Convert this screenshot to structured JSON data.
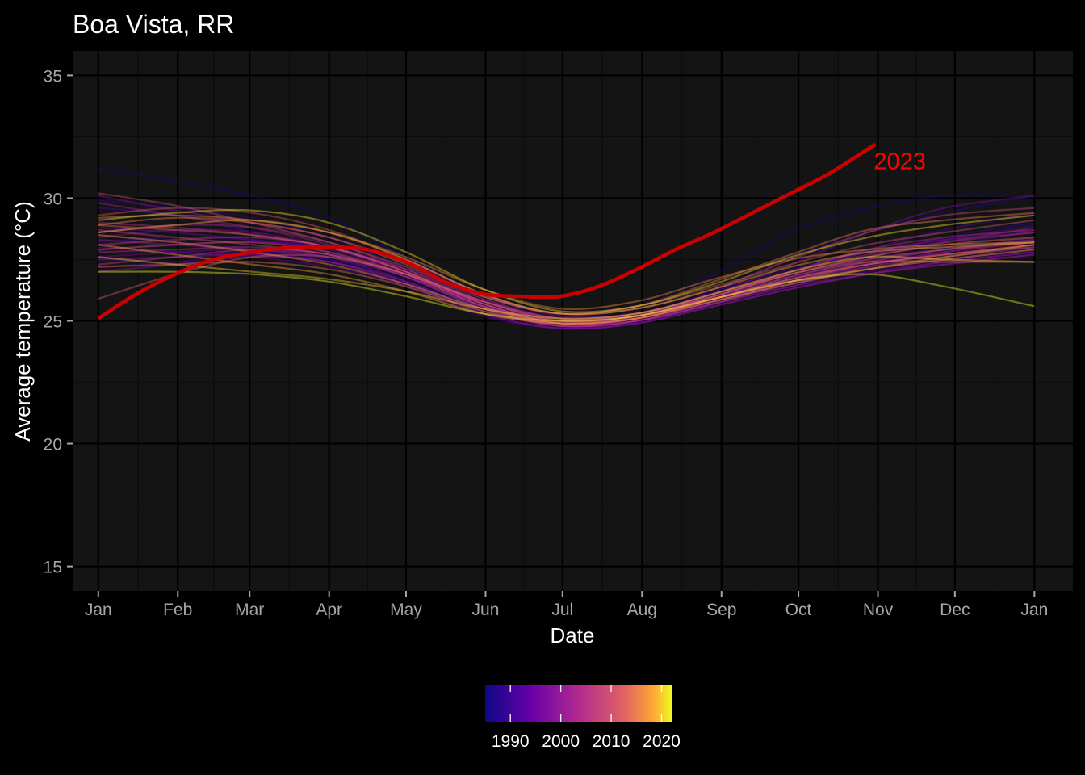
{
  "chart_data": {
    "type": "line",
    "title": "Boa Vista, RR",
    "xlabel": "Date",
    "ylabel": "Average temperature (°C)",
    "ylim": [
      14,
      36
    ],
    "yticks": [
      15,
      20,
      25,
      30,
      35
    ],
    "xlim": [
      -10,
      380
    ],
    "x_unit": "day of year",
    "xtick_days": [
      0,
      31,
      59,
      90,
      120,
      151,
      181,
      212,
      243,
      273,
      304,
      334,
      365
    ],
    "xtick_labels": [
      "Jan",
      "Feb",
      "Mar",
      "Apr",
      "May",
      "Jun",
      "Jul",
      "Aug",
      "Sep",
      "Oct",
      "Nov",
      "Dec",
      "Jan"
    ],
    "grid": true,
    "colors": {
      "background": "#000000",
      "panel": "#141414",
      "grid_major": "#000000",
      "grid_minor": "#0c0c0c",
      "highlight": "#cc0000",
      "highlight_label": "#ff0000"
    },
    "legend": {
      "position": "bottom",
      "type": "colorbar",
      "palette": "plasma",
      "range": [
        1985,
        2022
      ],
      "ticks": [
        1990,
        2000,
        2010,
        2020
      ]
    },
    "highlight": {
      "name": "2023",
      "x": [
        0,
        15,
        30,
        45,
        60,
        75,
        90,
        105,
        120,
        135,
        150,
        165,
        180,
        195,
        210,
        225,
        240,
        255,
        270,
        285,
        303
      ],
      "values": [
        25.1,
        26.1,
        26.9,
        27.5,
        27.8,
        28.0,
        28.0,
        27.9,
        27.4,
        26.6,
        26.1,
        26.0,
        26.0,
        26.4,
        27.1,
        27.9,
        28.6,
        29.4,
        30.2,
        31.0,
        32.2
      ]
    },
    "x": [
      0,
      30,
      60,
      90,
      120,
      150,
      180,
      210,
      240,
      270,
      300,
      330,
      365
    ],
    "series": [
      {
        "year": 1986,
        "values": [
          31.2,
          30.7,
          30.1,
          29.2,
          27.6,
          26.1,
          25.1,
          25.6,
          26.9,
          28.6,
          29.6,
          30.1,
          30.1
        ]
      },
      {
        "year": 1987,
        "values": [
          29.9,
          29.6,
          29.2,
          28.4,
          27.2,
          25.9,
          25.0,
          25.3,
          26.2,
          27.6,
          28.6,
          29.4,
          30.1
        ]
      },
      {
        "year": 1988,
        "values": [
          28.5,
          28.2,
          27.9,
          27.5,
          26.6,
          25.5,
          24.9,
          25.1,
          25.9,
          26.8,
          27.6,
          28.4,
          29.0
        ]
      },
      {
        "year": 1989,
        "values": [
          27.4,
          27.6,
          27.8,
          27.5,
          26.7,
          25.6,
          25.0,
          25.3,
          26.0,
          26.8,
          27.4,
          27.9,
          28.3
        ]
      },
      {
        "year": 1990,
        "values": [
          28.2,
          28.4,
          28.3,
          27.8,
          26.8,
          25.5,
          24.8,
          25.0,
          25.8,
          26.7,
          27.5,
          28.0,
          28.7
        ]
      },
      {
        "year": 1991,
        "values": [
          27.9,
          28.1,
          28.2,
          28.0,
          27.0,
          25.6,
          24.8,
          25.2,
          26.2,
          27.1,
          27.8,
          28.3,
          28.9
        ]
      },
      {
        "year": 1992,
        "values": [
          29.6,
          29.3,
          28.6,
          27.8,
          26.8,
          25.8,
          25.1,
          25.2,
          26.0,
          27.0,
          27.9,
          28.7,
          29.4
        ]
      },
      {
        "year": 1993,
        "values": [
          27.2,
          27.4,
          27.7,
          27.4,
          26.4,
          25.2,
          24.7,
          24.9,
          25.7,
          26.5,
          27.1,
          27.5,
          27.9
        ]
      },
      {
        "year": 1994,
        "values": [
          28.0,
          27.8,
          27.6,
          27.2,
          26.5,
          25.5,
          24.9,
          25.2,
          25.9,
          26.5,
          27.0,
          27.4,
          27.8
        ]
      },
      {
        "year": 1995,
        "values": [
          28.8,
          28.6,
          28.3,
          27.9,
          27.0,
          25.7,
          24.9,
          25.0,
          25.7,
          26.4,
          27.2,
          27.8,
          28.4
        ]
      },
      {
        "year": 1996,
        "values": [
          27.6,
          27.8,
          27.9,
          27.6,
          26.6,
          25.3,
          24.7,
          24.9,
          25.6,
          26.3,
          26.9,
          27.3,
          27.7
        ]
      },
      {
        "year": 1997,
        "values": [
          28.4,
          28.7,
          28.6,
          28.0,
          26.9,
          25.7,
          25.0,
          25.3,
          26.1,
          27.3,
          28.6,
          29.6,
          30.1
        ]
      },
      {
        "year": 1998,
        "values": [
          30.1,
          29.5,
          29.0,
          28.4,
          27.4,
          26.1,
          25.2,
          25.3,
          26.0,
          27.0,
          27.8,
          28.3,
          28.6
        ]
      },
      {
        "year": 1999,
        "values": [
          27.0,
          27.3,
          27.6,
          27.4,
          26.5,
          25.3,
          24.7,
          24.9,
          25.6,
          26.3,
          26.9,
          27.4,
          27.8
        ]
      },
      {
        "year": 2000,
        "values": [
          27.5,
          27.6,
          27.7,
          27.4,
          26.6,
          25.4,
          24.8,
          25.0,
          25.7,
          26.4,
          26.9,
          27.3,
          27.7
        ]
      },
      {
        "year": 2001,
        "values": [
          28.3,
          28.1,
          27.9,
          27.6,
          26.8,
          25.6,
          24.9,
          25.1,
          25.8,
          26.6,
          27.3,
          27.8,
          28.2
        ]
      },
      {
        "year": 2002,
        "values": [
          29.8,
          29.3,
          28.8,
          28.1,
          27.0,
          25.8,
          25.0,
          25.2,
          26.0,
          26.9,
          27.6,
          28.2,
          28.8
        ]
      },
      {
        "year": 2003,
        "values": [
          28.6,
          28.9,
          28.8,
          28.2,
          27.1,
          25.8,
          25.0,
          25.2,
          26.1,
          27.0,
          27.7,
          28.2,
          28.6
        ]
      },
      {
        "year": 2004,
        "values": [
          27.8,
          27.9,
          28.0,
          27.7,
          26.9,
          25.6,
          24.8,
          25.0,
          25.8,
          26.6,
          27.2,
          27.6,
          28.0
        ]
      },
      {
        "year": 2005,
        "values": [
          29.0,
          28.8,
          28.5,
          28.0,
          27.1,
          25.9,
          25.1,
          25.3,
          26.0,
          27.0,
          27.9,
          28.4,
          28.7
        ]
      },
      {
        "year": 2006,
        "values": [
          28.1,
          28.3,
          28.4,
          28.0,
          27.0,
          25.7,
          24.9,
          25.1,
          25.9,
          26.7,
          27.4,
          27.9,
          28.3
        ]
      },
      {
        "year": 2007,
        "values": [
          27.3,
          27.6,
          27.9,
          27.7,
          26.8,
          25.5,
          24.8,
          25.0,
          25.7,
          26.6,
          27.3,
          27.7,
          28.0
        ]
      },
      {
        "year": 2008,
        "values": [
          28.7,
          28.4,
          28.1,
          27.7,
          26.9,
          25.8,
          25.0,
          25.2,
          25.9,
          26.7,
          27.3,
          27.7,
          28.1
        ]
      },
      {
        "year": 2009,
        "values": [
          30.2,
          29.7,
          29.0,
          28.2,
          27.2,
          26.0,
          25.3,
          25.5,
          26.3,
          27.5,
          28.6,
          29.3,
          29.6
        ]
      },
      {
        "year": 2010,
        "values": [
          29.3,
          29.6,
          29.4,
          28.7,
          27.5,
          26.1,
          25.3,
          25.6,
          26.4,
          27.3,
          28.1,
          28.6,
          29.1
        ]
      },
      {
        "year": 2011,
        "values": [
          27.9,
          28.1,
          28.2,
          27.8,
          26.9,
          25.6,
          24.9,
          25.1,
          25.9,
          26.7,
          27.3,
          27.7,
          28.1
        ]
      },
      {
        "year": 2012,
        "values": [
          25.9,
          26.9,
          27.6,
          27.6,
          26.9,
          25.8,
          25.1,
          25.3,
          26.1,
          26.9,
          27.5,
          27.9,
          28.2
        ]
      },
      {
        "year": 2013,
        "values": [
          28.9,
          28.7,
          28.5,
          28.0,
          27.0,
          25.7,
          24.9,
          25.1,
          25.9,
          26.8,
          27.4,
          27.4,
          27.4
        ]
      },
      {
        "year": 2014,
        "values": [
          27.2,
          27.3,
          27.4,
          27.1,
          26.4,
          25.4,
          24.9,
          25.2,
          26.0,
          26.9,
          27.6,
          28.1,
          28.4
        ]
      },
      {
        "year": 2015,
        "values": [
          28.9,
          29.2,
          29.0,
          28.4,
          27.3,
          26.0,
          25.3,
          25.6,
          26.6,
          27.7,
          28.7,
          29.1,
          29.4
        ]
      },
      {
        "year": 2016,
        "values": [
          29.2,
          29.3,
          29.1,
          28.6,
          27.6,
          26.3,
          25.5,
          25.8,
          26.7,
          27.5,
          27.9,
          28.1,
          28.2
        ]
      },
      {
        "year": 2017,
        "values": [
          28.5,
          28.2,
          27.8,
          27.3,
          26.5,
          25.5,
          25.0,
          25.2,
          25.9,
          26.6,
          27.1,
          27.5,
          27.9
        ]
      },
      {
        "year": 2018,
        "values": [
          28.1,
          27.7,
          27.3,
          26.9,
          26.2,
          25.3,
          24.9,
          25.1,
          25.8,
          26.5,
          27.1,
          27.6,
          28.1
        ]
      },
      {
        "year": 2019,
        "values": [
          28.6,
          28.9,
          29.1,
          28.6,
          27.5,
          26.1,
          25.3,
          25.5,
          26.3,
          27.2,
          27.8,
          28.0,
          28.2
        ]
      },
      {
        "year": 2020,
        "values": [
          27.6,
          27.3,
          27.0,
          26.7,
          26.2,
          25.5,
          25.1,
          25.3,
          26.1,
          27.0,
          27.6,
          27.5,
          27.4
        ]
      },
      {
        "year": 2021,
        "values": [
          29.1,
          29.4,
          29.5,
          29.0,
          27.8,
          26.3,
          25.4,
          25.6,
          26.5,
          27.6,
          28.4,
          28.9,
          29.3
        ]
      },
      {
        "year": 2022,
        "values": [
          27.0,
          27.0,
          26.9,
          26.6,
          26.0,
          25.3,
          25.0,
          25.2,
          25.9,
          26.6,
          26.9,
          26.4,
          25.6
        ]
      }
    ]
  }
}
